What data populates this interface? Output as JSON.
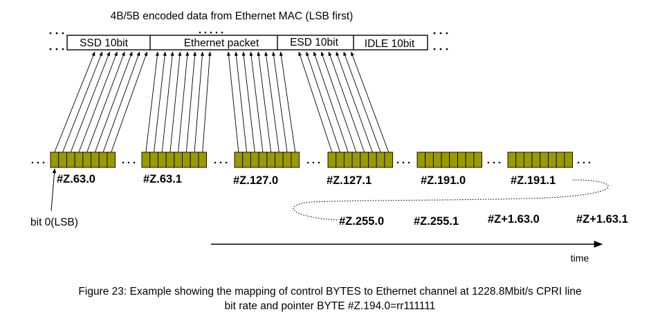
{
  "diagram": {
    "title": "4B/5B encoded data from Ethernet MAC (LSB first)",
    "segments": {
      "ssd": "SSD 10bit",
      "packet": "Ethernet packet",
      "esd": "ESD 10bit",
      "idle": "IDLE 10bit"
    },
    "ellipsis": "...",
    "bytes_row1": [
      "#Z.63.0",
      "#Z.63.1",
      "#Z.127.0",
      "#Z.127.1",
      "#Z.191.0",
      "#Z.191.1"
    ],
    "bytes_row2": [
      "#Z.255.0",
      "#Z.255.1",
      "#Z+1.63.0",
      "#Z+1.63.1"
    ],
    "bit_label": "bit 0(LSB)",
    "time_label": "time",
    "colors": {
      "byte_fill": "#9a9a00",
      "line": "#000000"
    }
  },
  "caption": {
    "line1": "Figure 23: Example showing the mapping of control BYTES to Ethernet channel at 1228.8Mbit/s CPRI line",
    "line2": "bit rate and pointer BYTE #Z.194.0=rr111111"
  }
}
